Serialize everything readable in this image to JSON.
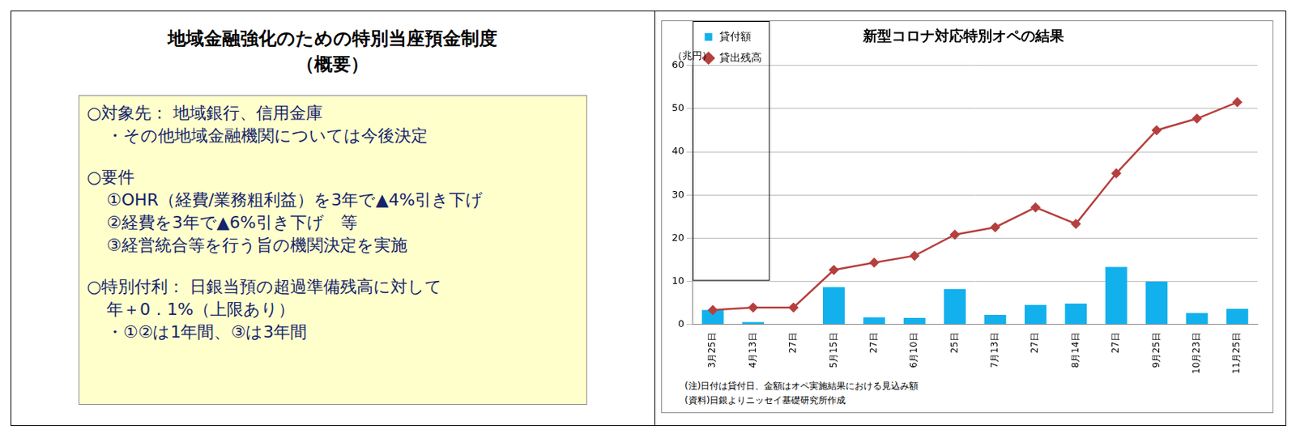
{
  "summary": {
    "title": "地域金融強化のための特別当座預金制度",
    "subtitle": "（概要）",
    "sections": [
      {
        "heading": "○対象先： 地域銀行、信用金庫",
        "lines": [
          "・その他地域金融機関については今後決定"
        ]
      },
      {
        "heading": "○要件",
        "lines": [
          "①OHR（経費/業務粗利益）を3年で▲4%引き下げ",
          "②経費を3年で▲6%引き下げ　等",
          "③経営統合等を行う旨の機関決定を実施"
        ]
      },
      {
        "heading": "○特別付利： 日銀当預の超過準備残高に対して",
        "lines": [
          "年＋0．1%（上限あり）",
          "・①②は1年間、③は3年間"
        ]
      }
    ]
  },
  "chart_data": {
    "type": "bar",
    "title": "新型コロナ対応特別オペの結果",
    "ylabel": "（兆円）",
    "categories": [
      "3月25日",
      "4月13日",
      "27日",
      "5月15日",
      "27日",
      "6月10日",
      "25日",
      "7月13日",
      "27日",
      "8月14日",
      "27日",
      "9月25日",
      "10月23日",
      "11月25日"
    ],
    "series": [
      {
        "name": "貸付額",
        "type": "bar",
        "color": "#12b0ec",
        "values": [
          3.3,
          0.5,
          0,
          8.6,
          1.6,
          1.5,
          8.2,
          2.2,
          4.5,
          4.8,
          13.3,
          9.9,
          2.6,
          3.6
        ]
      },
      {
        "name": "貸出残高",
        "type": "line",
        "color": "#b5403e",
        "marker": "diamond",
        "values": [
          3.3,
          3.9,
          3.9,
          12.6,
          14.3,
          15.9,
          20.8,
          22.5,
          27.1,
          23.3,
          35.0,
          45.0,
          47.7,
          51.5
        ]
      }
    ],
    "ylim": [
      0,
      60
    ],
    "yticks": [
      0,
      10,
      20,
      30,
      40,
      50,
      60
    ],
    "grid": true,
    "legend": "upper left",
    "notes": [
      "(注)日付は貸付日、金額はオペ実施結果における見込み額",
      "(資料)日銀よりニッセイ基礎研究所作成"
    ]
  }
}
